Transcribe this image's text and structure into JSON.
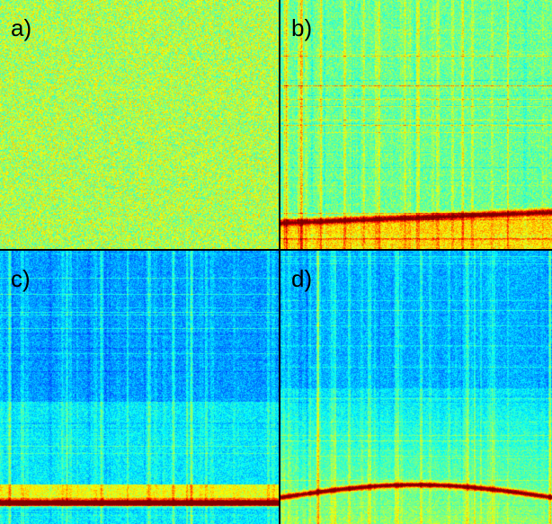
{
  "figure": {
    "colormap": "jet",
    "panels": [
      {
        "id": "a",
        "label": "a)",
        "content": "noise"
      },
      {
        "id": "b",
        "label": "b)",
        "content": "spectrogram-bright"
      },
      {
        "id": "c",
        "label": "c)",
        "content": "spectrogram-dark"
      },
      {
        "id": "d",
        "label": "d)",
        "content": "spectrogram-mixed"
      }
    ]
  }
}
